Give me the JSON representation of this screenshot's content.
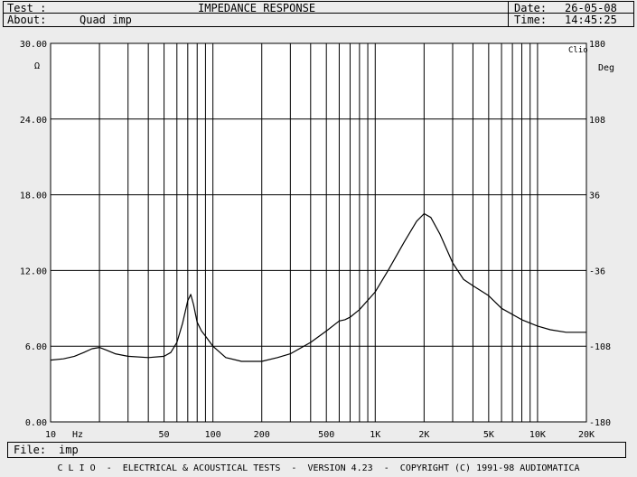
{
  "header": {
    "test_label": "Test :",
    "test_value": "IMPEDANCE RESPONSE",
    "about_label": "About:",
    "about_value": "Quad imp",
    "date_label": "Date:",
    "date_value": "26-05-08",
    "time_label": "Time:",
    "time_value": "14:45:25"
  },
  "file_bar": {
    "label": "File:",
    "value": "imp"
  },
  "footer": {
    "text": "C L I O  -  ELECTRICAL & ACOUSTICAL TESTS  -  VERSION 4.23  -  COPYRIGHT (C) 1991-98 AUDIOMATICA"
  },
  "chart_data": {
    "type": "line",
    "x_scale": "log",
    "xlim": [
      10,
      20000
    ],
    "ylim": [
      0,
      30
    ],
    "y2lim": [
      -180,
      180
    ],
    "ylabel": "Ω",
    "y2label": "Deg",
    "xunit": "Hz",
    "corner_label": "Clio",
    "grid": true,
    "y_ticks": [
      "0.00",
      "6.00",
      "12.00",
      "18.00",
      "24.00",
      "30.00"
    ],
    "y2_ticks": [
      "-180",
      "-108",
      "-36",
      "36",
      "108",
      "180"
    ],
    "x_ticks": [
      {
        "value": 10,
        "label": "10"
      },
      {
        "value": 50,
        "label": "50"
      },
      {
        "value": 100,
        "label": "100"
      },
      {
        "value": 200,
        "label": "200"
      },
      {
        "value": 500,
        "label": "500"
      },
      {
        "value": 1000,
        "label": "1K"
      },
      {
        "value": 2000,
        "label": "2K"
      },
      {
        "value": 5000,
        "label": "5K"
      },
      {
        "value": 10000,
        "label": "10K"
      },
      {
        "value": 20000,
        "label": "20K"
      }
    ],
    "series": [
      {
        "color": "#000000",
        "x": [
          10,
          12,
          14,
          16,
          18,
          20,
          22,
          25,
          30,
          40,
          50,
          55,
          60,
          65,
          70,
          73,
          76,
          80,
          85,
          90,
          100,
          120,
          150,
          200,
          250,
          300,
          400,
          500,
          600,
          650,
          700,
          800,
          1000,
          1200,
          1500,
          1800,
          2000,
          2200,
          2500,
          3000,
          3500,
          4000,
          5000,
          6000,
          8000,
          10000,
          12000,
          15000,
          20000
        ],
        "y": [
          4.9,
          5.0,
          5.2,
          5.5,
          5.8,
          5.9,
          5.7,
          5.4,
          5.2,
          5.1,
          5.2,
          5.5,
          6.3,
          7.8,
          9.6,
          10.1,
          9.3,
          7.9,
          7.2,
          6.8,
          6.0,
          5.1,
          4.8,
          4.8,
          5.1,
          5.4,
          6.3,
          7.2,
          8.0,
          8.1,
          8.3,
          8.9,
          10.3,
          12.0,
          14.2,
          15.9,
          16.5,
          16.2,
          14.9,
          12.6,
          11.3,
          10.8,
          10.0,
          9.0,
          8.1,
          7.6,
          7.3,
          7.1,
          7.1
        ]
      }
    ]
  }
}
